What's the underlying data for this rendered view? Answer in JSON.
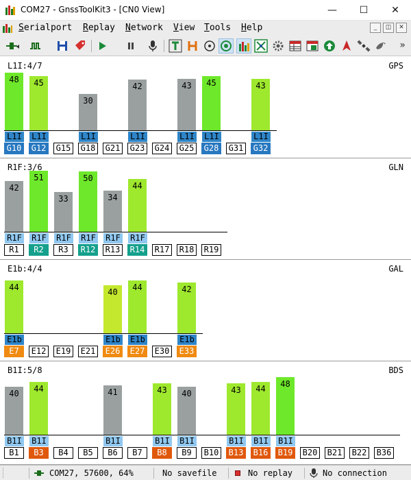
{
  "window": {
    "title": "COM27 - GnssToolKit3 - [CN0 View]",
    "controls": {
      "minimize": "—",
      "maximize": "☐",
      "close": "✕"
    }
  },
  "menu": {
    "items": [
      "Serialport",
      "Replay",
      "Network",
      "View",
      "Tools",
      "Help"
    ],
    "mdi_controls": [
      "_",
      "◫",
      "✕"
    ]
  },
  "toolbar": {
    "icons": [
      "connect-icon",
      "signal-wave-icon",
      "save-icon",
      "tag-icon",
      "play-icon",
      "pause-icon",
      "mic-icon",
      "t-view-icon",
      "h-view-icon",
      "compass-icon",
      "target-icon",
      "cn0-bars-icon",
      "scatter-icon",
      "gear-icon",
      "table-icon",
      "table-green-icon",
      "upload-icon",
      "navigation-icon",
      "satellite-icon",
      "pigeon-icon"
    ],
    "active": [
      "target-icon",
      "cn0-bars-icon"
    ],
    "more": "»"
  },
  "colors": {
    "bar_gray": "#9aa0a0",
    "bar_green": "#6ee82a",
    "bar_light_green": "#9ee82e",
    "gps_used": "#2878c0",
    "gps_sig": "#2f85c8",
    "glonass_used": "#14a08c",
    "sig_light": "#90c8f0",
    "galileo_used": "#f08a10",
    "beidou_used": "#e0580c"
  },
  "panels": [
    {
      "label": "L1I:4/7",
      "system": "GPS",
      "sats": [
        {
          "prn": "G10",
          "cn0": 48,
          "sig": "L1I",
          "used": true,
          "color": "green"
        },
        {
          "prn": "G12",
          "cn0": 45,
          "sig": "L1I",
          "used": true,
          "color": "light"
        },
        {
          "prn": "G15",
          "cn0": null,
          "sig": "",
          "used": false
        },
        {
          "prn": "G18",
          "cn0": 30,
          "sig": "L1I",
          "used": false,
          "color": "gray"
        },
        {
          "prn": "G21",
          "cn0": null,
          "sig": "",
          "used": false
        },
        {
          "prn": "G23",
          "cn0": 42,
          "sig": "L1I",
          "used": false,
          "color": "gray"
        },
        {
          "prn": "G24",
          "cn0": null,
          "sig": "",
          "used": false
        },
        {
          "prn": "G25",
          "cn0": 43,
          "sig": "L1I",
          "used": false,
          "color": "gray"
        },
        {
          "prn": "G28",
          "cn0": 45,
          "sig": "L1I",
          "used": true,
          "color": "green"
        },
        {
          "prn": "G31",
          "cn0": null,
          "sig": "",
          "used": false
        },
        {
          "prn": "G32",
          "cn0": 43,
          "sig": "L1I",
          "used": true,
          "color": "light"
        }
      ]
    },
    {
      "label": "R1F:3/6",
      "system": "GLN",
      "sats": [
        {
          "prn": "R1",
          "cn0": 42,
          "sig": "R1F",
          "used": false,
          "color": "gray"
        },
        {
          "prn": "R2",
          "cn0": 51,
          "sig": "R1F",
          "used": true,
          "color": "green"
        },
        {
          "prn": "R3",
          "cn0": 33,
          "sig": "R1F",
          "used": false,
          "color": "gray"
        },
        {
          "prn": "R12",
          "cn0": 50,
          "sig": "R1F",
          "used": true,
          "color": "green"
        },
        {
          "prn": "R13",
          "cn0": 34,
          "sig": "R1F",
          "used": false,
          "color": "gray"
        },
        {
          "prn": "R14",
          "cn0": 44,
          "sig": "R1F",
          "used": true,
          "color": "light"
        },
        {
          "prn": "R17",
          "cn0": null,
          "sig": "",
          "used": false
        },
        {
          "prn": "R18",
          "cn0": null,
          "sig": "",
          "used": false
        },
        {
          "prn": "R19",
          "cn0": null,
          "sig": "",
          "used": false
        }
      ]
    },
    {
      "label": "E1b:4/4",
      "system": "GAL",
      "sats": [
        {
          "prn": "E7",
          "cn0": 44,
          "sig": "E1b",
          "used": true,
          "color": "light"
        },
        {
          "prn": "E12",
          "cn0": null,
          "sig": "",
          "used": false
        },
        {
          "prn": "E19",
          "cn0": null,
          "sig": "",
          "used": false
        },
        {
          "prn": "E21",
          "cn0": null,
          "sig": "",
          "used": false
        },
        {
          "prn": "E26",
          "cn0": 40,
          "sig": "E1b",
          "used": true,
          "color": "yellowgreen"
        },
        {
          "prn": "E27",
          "cn0": 44,
          "sig": "E1b",
          "used": true,
          "color": "light"
        },
        {
          "prn": "E30",
          "cn0": null,
          "sig": "",
          "used": false
        },
        {
          "prn": "E33",
          "cn0": 42,
          "sig": "E1b",
          "used": true,
          "color": "light"
        }
      ]
    },
    {
      "label": "B1I:5/8",
      "system": "BDS",
      "sats": [
        {
          "prn": "B1",
          "cn0": 40,
          "sig": "B1I",
          "used": false,
          "color": "gray"
        },
        {
          "prn": "B3",
          "cn0": 44,
          "sig": "B1I",
          "used": true,
          "color": "light"
        },
        {
          "prn": "B4",
          "cn0": null,
          "sig": "",
          "used": false
        },
        {
          "prn": "B5",
          "cn0": null,
          "sig": "",
          "used": false
        },
        {
          "prn": "B6",
          "cn0": 41,
          "sig": "B1I",
          "used": false,
          "color": "gray"
        },
        {
          "prn": "B7",
          "cn0": null,
          "sig": "",
          "used": false
        },
        {
          "prn": "B8",
          "cn0": 43,
          "sig": "B1I",
          "used": true,
          "color": "light"
        },
        {
          "prn": "B9",
          "cn0": 40,
          "sig": "B1I",
          "used": false,
          "color": "gray"
        },
        {
          "prn": "B10",
          "cn0": null,
          "sig": "",
          "used": false
        },
        {
          "prn": "B13",
          "cn0": 43,
          "sig": "B1I",
          "used": true,
          "color": "light"
        },
        {
          "prn": "B16",
          "cn0": 44,
          "sig": "B1I",
          "used": true,
          "color": "light"
        },
        {
          "prn": "B19",
          "cn0": 48,
          "sig": "B1I",
          "used": true,
          "color": "green"
        },
        {
          "prn": "B20",
          "cn0": null,
          "sig": "",
          "used": false
        },
        {
          "prn": "B21",
          "cn0": null,
          "sig": "",
          "used": false
        },
        {
          "prn": "B22",
          "cn0": null,
          "sig": "",
          "used": false
        },
        {
          "prn": "B36",
          "cn0": null,
          "sig": "",
          "used": false
        }
      ]
    }
  ],
  "statusbar": {
    "port": "COM27, 57600, 64%",
    "savefile": "No savefile",
    "replay": "No replay",
    "connection": "No connection"
  }
}
